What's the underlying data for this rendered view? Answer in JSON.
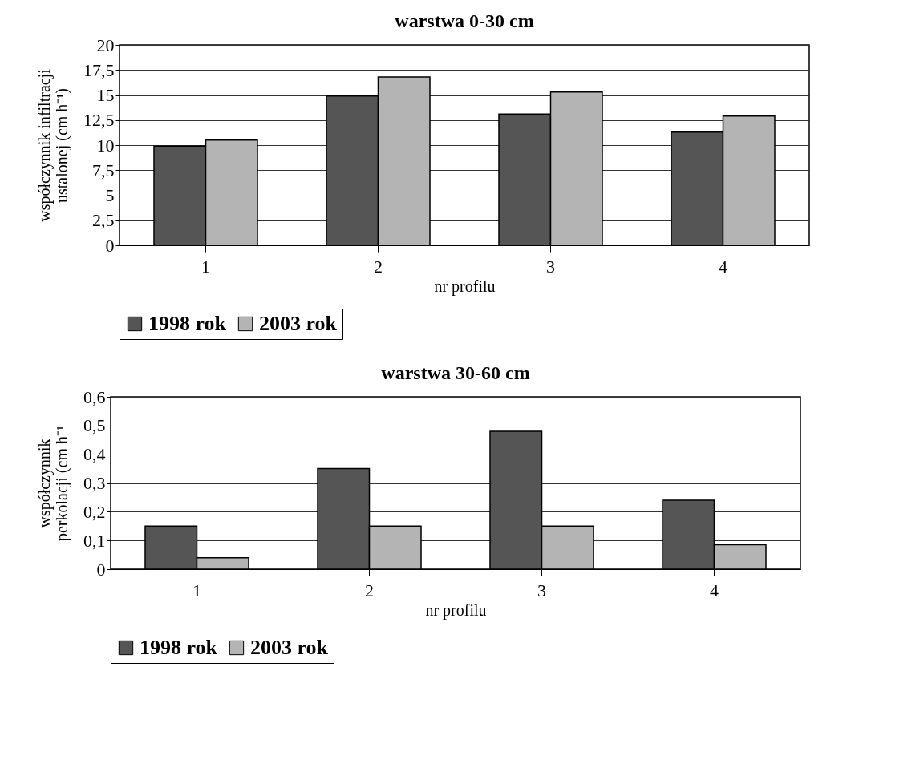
{
  "chart_data": [
    {
      "type": "bar",
      "title": "warstwa 0-30 cm",
      "xlabel": "nr profilu",
      "ylabel": "współczynnik infiltracji\nustalonej (cm h⁻¹)",
      "categories": [
        "1",
        "2",
        "3",
        "4"
      ],
      "series": [
        {
          "name": "1998 rok",
          "color": "#555555",
          "values": [
            9.9,
            14.9,
            13.1,
            11.3
          ]
        },
        {
          "name": "2003 rok",
          "color": "#b4b4b4",
          "values": [
            10.5,
            16.8,
            15.3,
            12.9
          ]
        }
      ],
      "ylim": [
        0,
        20
      ],
      "yticks": [
        0,
        {
          "value": 2.5,
          "label": "2,5"
        },
        5,
        {
          "value": 7.5,
          "label": "7,5"
        },
        10,
        {
          "value": 12.5,
          "label": "12,5"
        },
        15,
        {
          "value": 17.5,
          "label": "17,5"
        },
        20
      ],
      "grid": "y",
      "legend": "bottom"
    },
    {
      "type": "bar",
      "title": "warstwa 30-60 cm",
      "xlabel": "nr profilu",
      "ylabel": "współczynnik\nperkolacji (cm h⁻¹",
      "categories": [
        "1",
        "2",
        "3",
        "4"
      ],
      "series": [
        {
          "name": "1998 rok",
          "color": "#555555",
          "values": [
            0.15,
            0.35,
            0.48,
            0.24
          ]
        },
        {
          "name": "2003 rok",
          "color": "#b4b4b4",
          "values": [
            0.04,
            0.15,
            0.15,
            0.085
          ]
        }
      ],
      "ylim": [
        0,
        0.6
      ],
      "yticks": [
        0,
        {
          "value": 0.1,
          "label": "0,1"
        },
        {
          "value": 0.2,
          "label": "0,2"
        },
        {
          "value": 0.3,
          "label": "0,3"
        },
        {
          "value": 0.4,
          "label": "0,4"
        },
        {
          "value": 0.5,
          "label": "0,5"
        },
        {
          "value": 0.6,
          "label": "0,6"
        }
      ],
      "grid": "y",
      "legend": "bottom"
    }
  ]
}
